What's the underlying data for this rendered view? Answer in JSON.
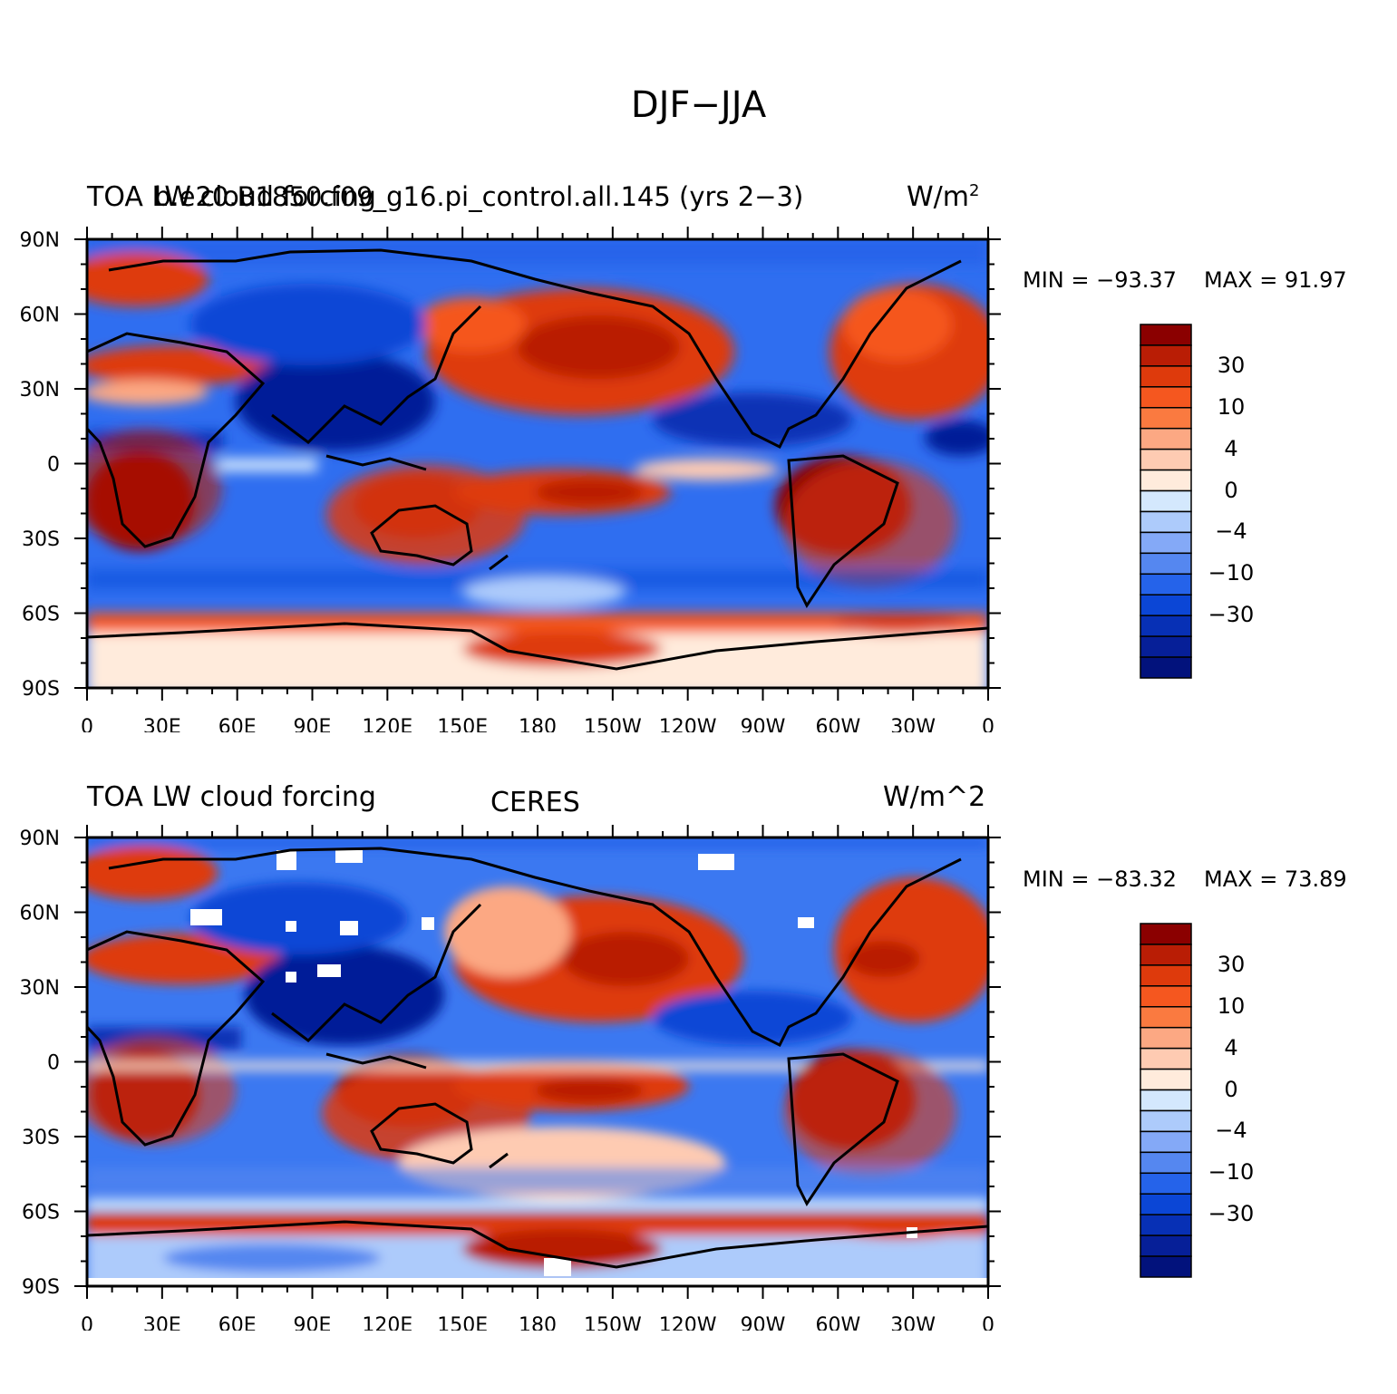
{
  "figure": {
    "title": "DJF−JJA"
  },
  "panels": [
    {
      "id": "model",
      "left_title": "TOA LW cloud forcing",
      "center_title": "b.e20.B1850.f09_g16.pi_control.all.145 (yrs 2−3)",
      "units": "W/m",
      "units_sup": "2",
      "min_label": "MIN = −93.37",
      "max_label": "MAX =  91.97",
      "stats": {
        "min": -93.37,
        "max": 91.97
      }
    },
    {
      "id": "obs",
      "left_title": "TOA LW cloud forcing",
      "center_title": "CERES",
      "units": "W/m^2",
      "units_sup": "",
      "min_label": "MIN = −83.32",
      "max_label": "MAX =  73.89",
      "stats": {
        "min": -83.32,
        "max": 73.89
      }
    }
  ],
  "axes": {
    "lat_labels": [
      "90N",
      "60N",
      "30N",
      "0",
      "30S",
      "60S",
      "90S"
    ],
    "lon_labels": [
      "0",
      "30E",
      "60E",
      "90E",
      "120E",
      "150E",
      "180",
      "150W",
      "120W",
      "90W",
      "60W",
      "30W",
      "0"
    ]
  },
  "colorbar": {
    "labels": [
      "30",
      "10",
      "4",
      "0",
      "−4",
      "−10",
      "−30"
    ],
    "colors": [
      "#8b0000",
      "#b91d05",
      "#de3a0c",
      "#f5571f",
      "#fa7a40",
      "#fca883",
      "#fecbb2",
      "#ffebdc",
      "#d4e8fd",
      "#adcbfb",
      "#84a9f7",
      "#5587f0",
      "#2563ea",
      "#0b46d6",
      "#0730b5",
      "#061f98",
      "#02127c"
    ]
  },
  "chart_data": {
    "type": "heatmap",
    "title": "DJF−JJA",
    "variable": "TOA LW cloud forcing",
    "units": "W/m^2",
    "x_ticks": [
      "0",
      "30E",
      "60E",
      "90E",
      "120E",
      "150E",
      "180",
      "150W",
      "120W",
      "90W",
      "60W",
      "30W",
      "0"
    ],
    "y_ticks": [
      "90N",
      "60N",
      "30N",
      "0",
      "30S",
      "60S",
      "90S"
    ],
    "xlim": [
      0,
      360
    ],
    "ylim": [
      -90,
      90
    ],
    "colorbar_levels": [
      30,
      10,
      4,
      0,
      -4,
      -10,
      -30
    ],
    "panels": [
      {
        "name": "b.e20.B1850.f09_g16.pi_control.all.145 (yrs 2−3)",
        "min": -93.37,
        "max": 91.97
      },
      {
        "name": "CERES",
        "min": -83.32,
        "max": 73.89
      }
    ]
  }
}
